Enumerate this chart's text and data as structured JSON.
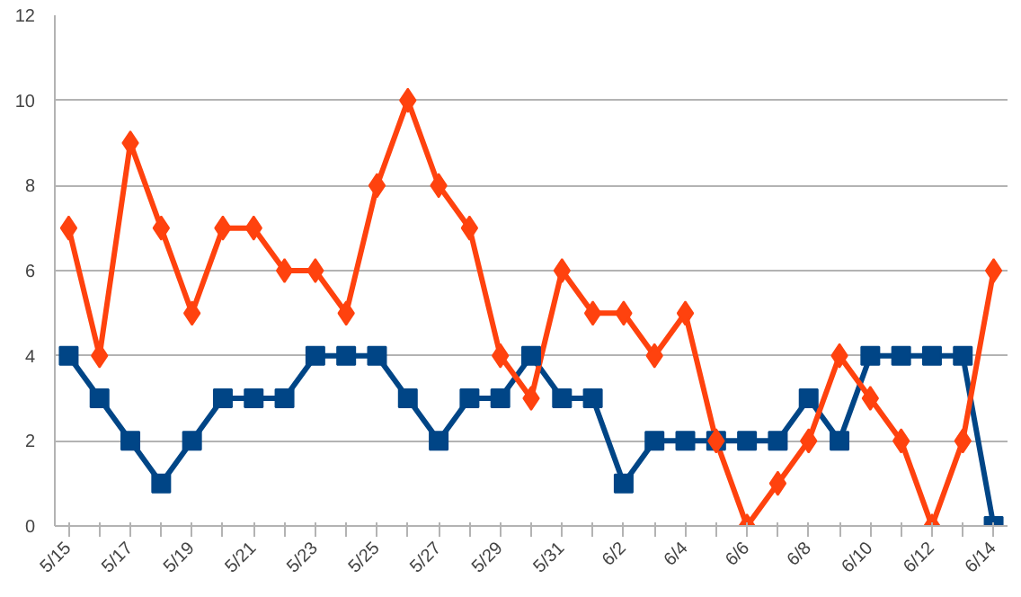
{
  "chart_data": {
    "type": "line",
    "categories": [
      "5/15",
      null,
      "5/17",
      null,
      "5/19",
      null,
      "5/21",
      null,
      "5/23",
      null,
      "5/25",
      null,
      "5/27",
      null,
      "5/29",
      null,
      "5/31",
      null,
      "6/2",
      null,
      "6/4",
      null,
      "6/6",
      null,
      "6/8",
      null,
      "6/10",
      null,
      "6/12",
      null,
      "6/14"
    ],
    "series": [
      {
        "color": "#ff420e",
        "marker": "diamond",
        "values": [
          7,
          4,
          9,
          7,
          5,
          7,
          7,
          6,
          6,
          5,
          8,
          10,
          8,
          7,
          4,
          3,
          6,
          5,
          5,
          4,
          5,
          2,
          0,
          1,
          2,
          4,
          3,
          2,
          0,
          2,
          6
        ]
      },
      {
        "color": "#004586",
        "marker": "square",
        "values": [
          4,
          3,
          2,
          1,
          2,
          3,
          3,
          3,
          4,
          4,
          4,
          3,
          2,
          3,
          3,
          4,
          3,
          3,
          1,
          2,
          2,
          2,
          2,
          2,
          3,
          2,
          4,
          4,
          4,
          4,
          0
        ]
      }
    ],
    "ylim": [
      0,
      12
    ],
    "yticks": [
      0,
      2,
      4,
      6,
      8,
      10,
      12
    ],
    "grid": "y",
    "line_style": "solid"
  }
}
